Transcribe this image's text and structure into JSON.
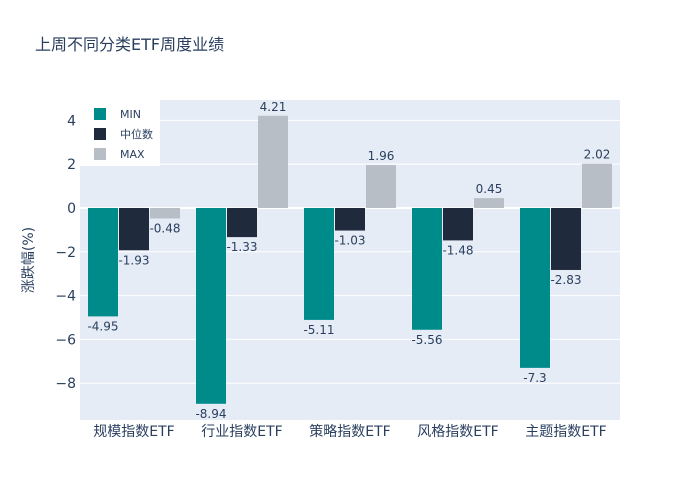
{
  "chart_data": {
    "type": "bar",
    "title": "上周不同分类ETF周度业绩",
    "xlabel": "",
    "ylabel": "涨跌幅(%)",
    "categories": [
      "规模指数ETF",
      "行业指数ETF",
      "策略指数ETF",
      "风格指数ETF",
      "主题指数ETF"
    ],
    "series": [
      {
        "name": "MIN",
        "color": "#008b8b",
        "values": [
          -4.95,
          -8.94,
          -5.11,
          -5.56,
          -7.3
        ]
      },
      {
        "name": "中位数",
        "color": "#1f2a3c",
        "values": [
          -1.93,
          -1.33,
          -1.03,
          -1.48,
          -2.83
        ]
      },
      {
        "name": "MAX",
        "color": "#b8bec6",
        "values": [
          -0.48,
          4.21,
          1.96,
          0.45,
          2.02
        ]
      }
    ],
    "yticks": [
      -8,
      -6,
      -4,
      -2,
      0,
      2,
      4
    ],
    "ylim": [
      -9.68,
      4.93
    ],
    "grid": true,
    "legend_position": "top-left",
    "plot_bg": "#e5ecf6"
  }
}
